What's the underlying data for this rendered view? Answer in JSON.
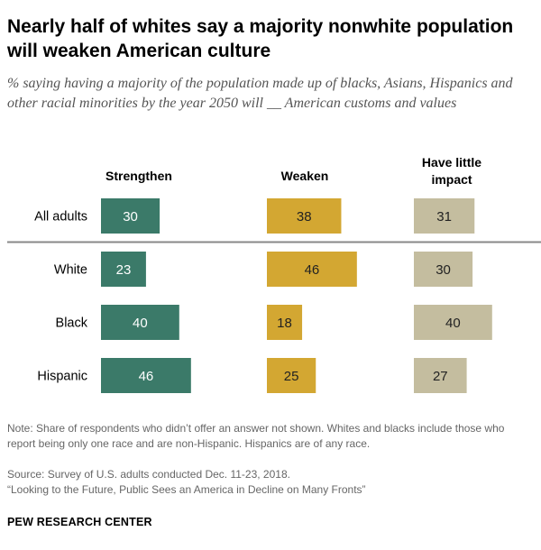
{
  "title": "Nearly half of whites say a majority nonwhite population will weaken American culture",
  "subtitle": "% saying having a majority of the population made up of blacks, Asians, Hispanics and other racial minorities by the year 2050 will __ American customs and values",
  "note": "Note: Share of respondents who didn’t offer an answer not shown. Whites and blacks include those who report being only one race and are non-Hispanic. Hispanics are of any race.",
  "source": "Source: Survey of U.S. adults conducted Dec. 11-23, 2018.",
  "report": "“Looking to the Future, Public Sees an America in Decline on Many Fronts”",
  "brand": "PEW RESEARCH CENTER",
  "chart_data": {
    "type": "bar",
    "categories": [
      "All adults",
      "White",
      "Black",
      "Hispanic"
    ],
    "series": [
      {
        "name": "Strengthen",
        "header_lines": [
          "Strengthen"
        ],
        "values": [
          30,
          23,
          40,
          46
        ],
        "color": "#3b7a69",
        "label_color": "#ffffff"
      },
      {
        "name": "Weaken",
        "header_lines": [
          "Weaken"
        ],
        "values": [
          38,
          46,
          18,
          25
        ],
        "color": "#d3a732",
        "label_color": "#222222"
      },
      {
        "name": "Have little impact",
        "header_lines": [
          "Have little",
          "impact"
        ],
        "values": [
          31,
          30,
          40,
          27
        ],
        "color": "#c4bd9f",
        "label_color": "#222222"
      }
    ],
    "separator_after": "All adults"
  }
}
